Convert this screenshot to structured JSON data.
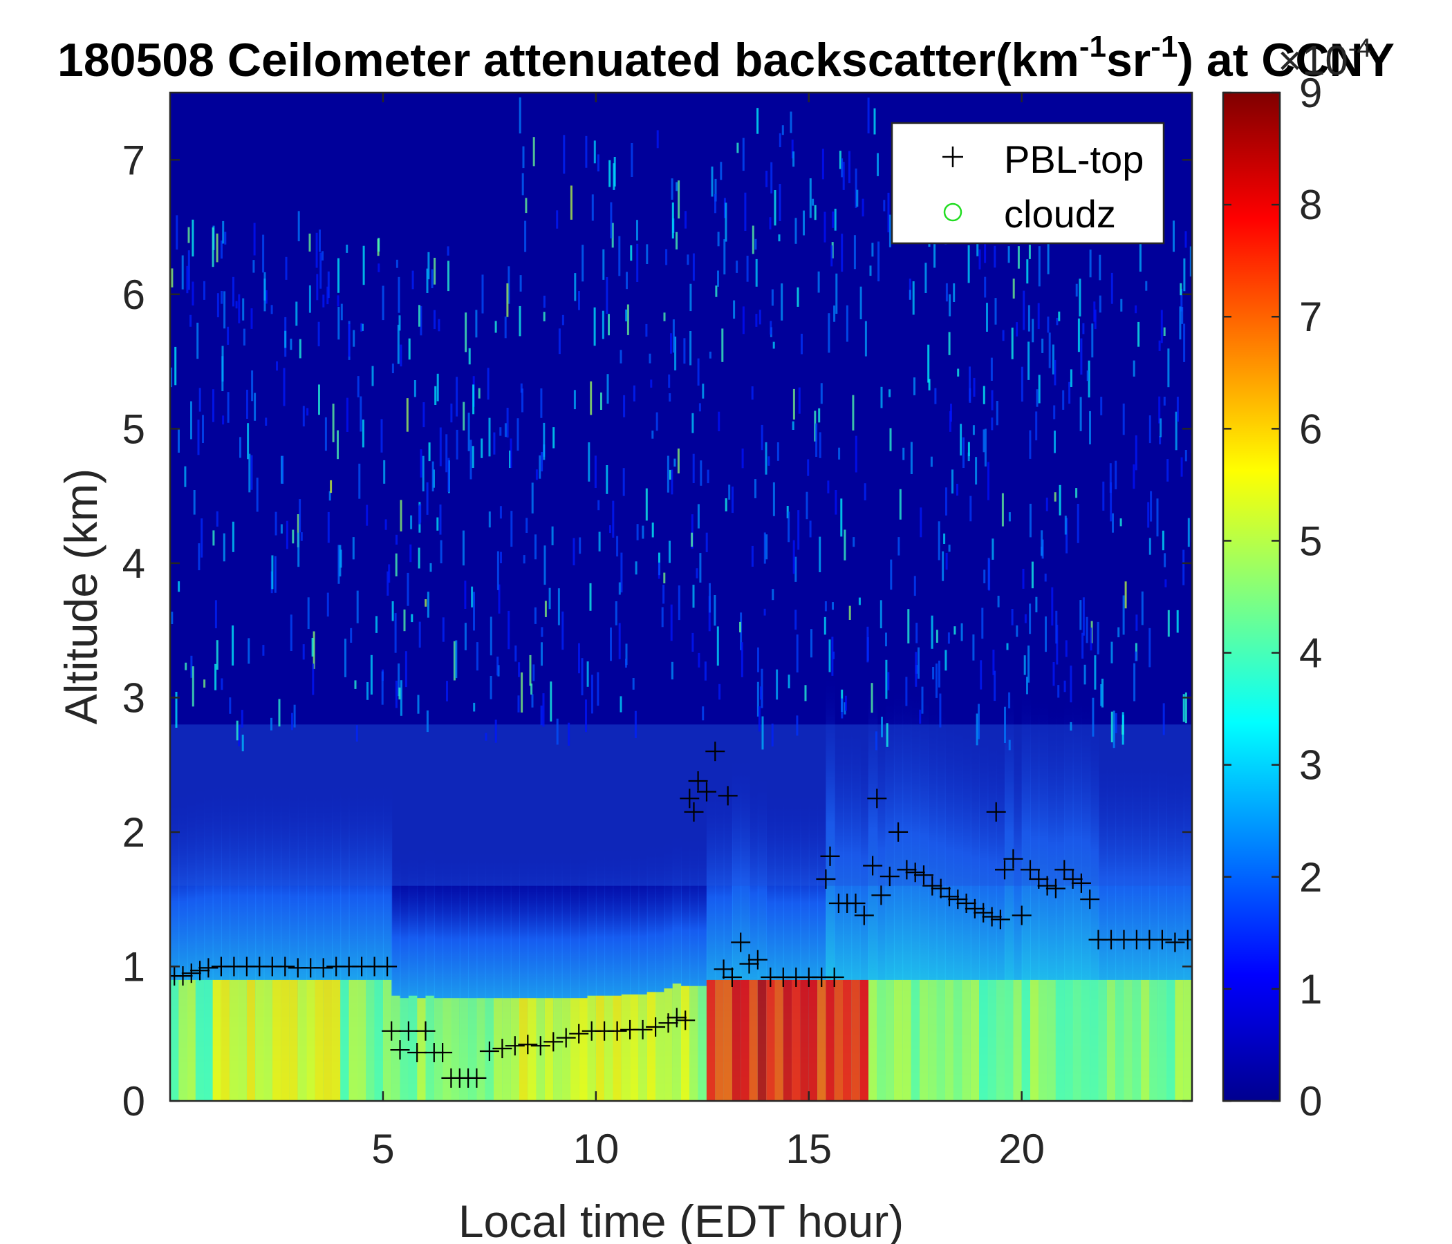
{
  "chart_data": {
    "type": "heatmap",
    "title": {
      "prefix": "180508 Ceilometer attenuated backscatter(km",
      "sup1": "-1",
      "mid": "sr",
      "sup2": "-1",
      "suffix": ") at CCNY"
    },
    "xlabel": "Local time (EDT hour)",
    "ylabel": "Altitude (km)",
    "xlim": [
      0,
      24
    ],
    "ylim": [
      0,
      7.5
    ],
    "xticks": [
      "5",
      "10",
      "15",
      "20"
    ],
    "yticks": [
      "0",
      "1",
      "2",
      "3",
      "4",
      "5",
      "6",
      "7"
    ],
    "colorbar": {
      "colormap": "jet",
      "clim": [
        0,
        9
      ],
      "ticks": [
        "0",
        "1",
        "2",
        "3",
        "4",
        "5",
        "6",
        "7",
        "8",
        "9"
      ],
      "exponent_label": "×10",
      "exponent_power": "-4"
    },
    "legend": {
      "location": "top-right",
      "entries": [
        {
          "label": "PBL-top",
          "marker": "+",
          "color": "#000000"
        },
        {
          "label": "cloudz",
          "marker": "o",
          "color": "#22dd22"
        }
      ]
    },
    "series": [
      {
        "name": "PBL-top",
        "marker": "+",
        "x": [
          0.1,
          0.3,
          0.5,
          0.7,
          0.9,
          1.2,
          1.5,
          1.8,
          2.1,
          2.4,
          2.7,
          3.0,
          3.3,
          3.6,
          3.9,
          4.2,
          4.5,
          4.8,
          5.1,
          5.2,
          5.4,
          5.6,
          5.8,
          6.0,
          6.2,
          6.4,
          6.6,
          6.8,
          7.0,
          7.2,
          7.5,
          7.8,
          8.1,
          8.4,
          8.7,
          9.0,
          9.3,
          9.6,
          9.9,
          10.2,
          10.5,
          10.8,
          11.1,
          11.4,
          11.7,
          11.9,
          12.1,
          12.2,
          12.3,
          12.4,
          12.6,
          12.8,
          13.0,
          13.1,
          13.2,
          13.4,
          13.6,
          13.8,
          14.1,
          14.4,
          14.7,
          15.0,
          15.3,
          15.6,
          15.4,
          15.5,
          15.7,
          15.9,
          16.1,
          16.3,
          16.5,
          16.6,
          16.7,
          16.9,
          17.1,
          17.3,
          17.5,
          17.7,
          17.9,
          18.1,
          18.3,
          18.5,
          18.7,
          18.9,
          19.1,
          19.3,
          19.5,
          19.4,
          19.6,
          19.8,
          20.0,
          20.2,
          20.4,
          20.6,
          20.8,
          21.0,
          21.2,
          21.4,
          21.6,
          21.8,
          22.1,
          22.4,
          22.7,
          23.0,
          23.3,
          23.6,
          23.9
        ],
        "y": [
          0.93,
          0.93,
          0.95,
          0.97,
          0.99,
          1.0,
          1.0,
          1.0,
          1.0,
          1.0,
          1.0,
          0.99,
          0.99,
          0.99,
          1.0,
          1.0,
          1.0,
          1.0,
          1.0,
          0.52,
          0.38,
          0.52,
          0.36,
          0.52,
          0.36,
          0.36,
          0.17,
          0.17,
          0.17,
          0.17,
          0.37,
          0.39,
          0.41,
          0.42,
          0.41,
          0.44,
          0.47,
          0.5,
          0.52,
          0.52,
          0.52,
          0.53,
          0.53,
          0.55,
          0.58,
          0.62,
          0.6,
          2.25,
          2.15,
          2.38,
          2.3,
          2.6,
          0.98,
          2.27,
          0.92,
          1.18,
          1.02,
          1.05,
          0.92,
          0.92,
          0.92,
          0.92,
          0.92,
          0.92,
          1.65,
          1.82,
          1.47,
          1.47,
          1.47,
          1.38,
          1.75,
          2.25,
          1.53,
          1.67,
          2.0,
          1.72,
          1.7,
          1.68,
          1.6,
          1.58,
          1.52,
          1.5,
          1.47,
          1.43,
          1.4,
          1.37,
          1.35,
          2.15,
          1.72,
          1.8,
          1.38,
          1.72,
          1.65,
          1.6,
          1.58,
          1.72,
          1.65,
          1.62,
          1.5,
          1.2,
          1.2,
          1.2,
          1.2,
          1.2,
          1.2,
          1.18,
          1.2
        ]
      },
      {
        "name": "cloudz",
        "marker": "o",
        "x": [],
        "y": []
      }
    ]
  }
}
